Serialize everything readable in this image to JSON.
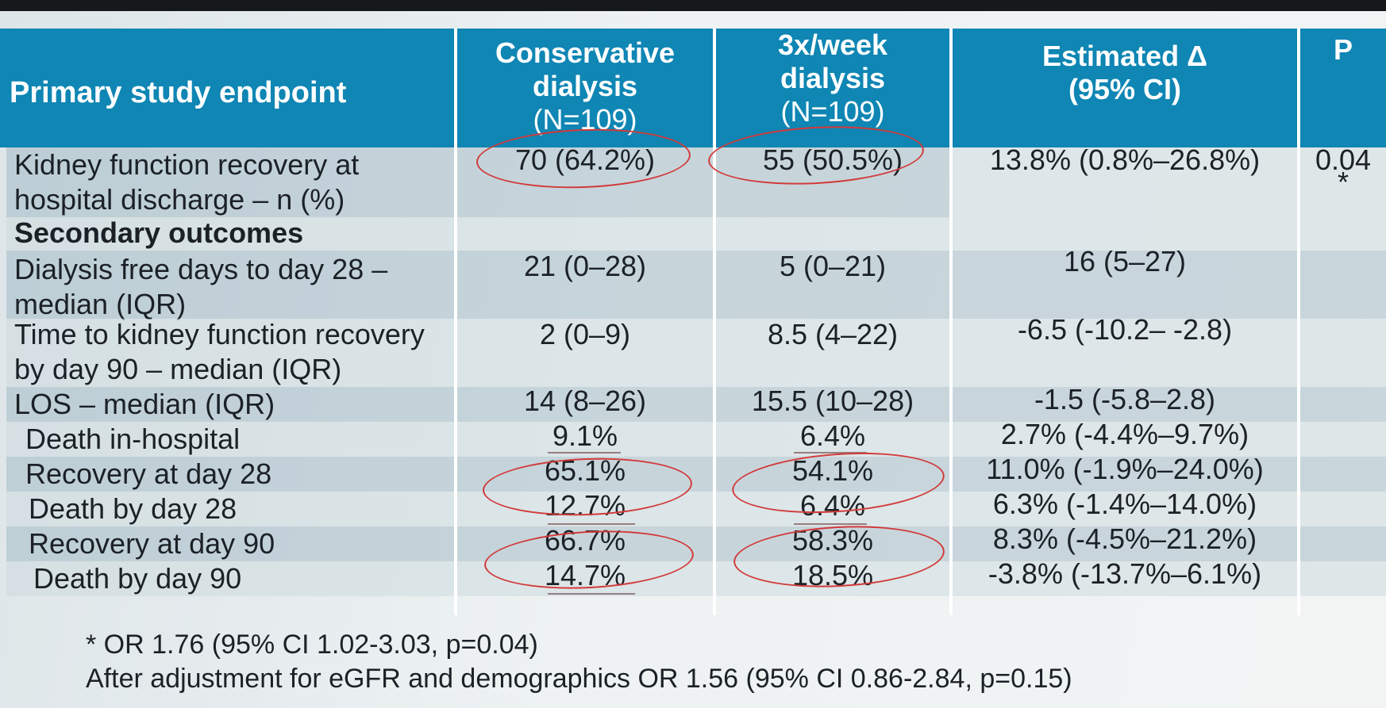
{
  "header": {
    "endpoint": "Primary study endpoint",
    "conservative": [
      "Conservative",
      "dialysis",
      "(N=109)"
    ],
    "threeweekly": [
      "3x/week",
      "dialysis",
      "(N=109)"
    ],
    "estimated": [
      "Estimated Δ",
      "(95% CI)"
    ],
    "p": "P"
  },
  "primary": {
    "label": [
      "Kidney function recovery at",
      "hospital discharge – n (%)"
    ],
    "conservative": "70 (64.2%)",
    "threeweekly": "55 (50.5%)",
    "estimated": "13.8% (0.8%–26.8%)",
    "p": "0.04",
    "p_mark": "*"
  },
  "secondary_heading": "Secondary outcomes",
  "rows": [
    {
      "label": [
        "Dialysis free days to day 28 –",
        "median (IQR)"
      ],
      "conservative": "21 (0–28)",
      "threeweekly": "5 (0–21)",
      "estimated": "16 (5–27)"
    },
    {
      "label": [
        "Time to kidney function recovery",
        "by day 90 – median (IQR)"
      ],
      "conservative": "2 (0–9)",
      "threeweekly": "8.5 (4–22)",
      "estimated": "-6.5 (-10.2– -2.8)"
    },
    {
      "label": [
        "LOS – median (IQR)"
      ],
      "conservative": "14 (8–26)",
      "threeweekly": "15.5 (10–28)",
      "estimated": "-1.5 (-5.8–2.8)"
    },
    {
      "label": [
        "Death in-hospital"
      ],
      "conservative": "9.1%",
      "threeweekly": "6.4%",
      "estimated": "2.7% (-4.4%–9.7%)"
    },
    {
      "label": [
        "Recovery at day 28"
      ],
      "conservative": "65.1%",
      "threeweekly": "54.1%",
      "estimated": "11.0% (-1.9%–24.0%)"
    },
    {
      "label": [
        "Death by day 28"
      ],
      "conservative": "12.7%",
      "threeweekly": "6.4%",
      "estimated": "6.3% (-1.4%–14.0%)"
    },
    {
      "label": [
        "Recovery at day 90"
      ],
      "conservative": "66.7%",
      "threeweekly": "58.3%",
      "estimated": "8.3% (-4.5%–21.2%)"
    },
    {
      "label": [
        "Death by day 90"
      ],
      "conservative": "14.7%",
      "threeweekly": "18.5%",
      "estimated": "-3.8% (-13.7%–6.1%)"
    }
  ],
  "footnotes": [
    "* OR 1.76 (95% CI 1.02-3.03, p=0.04)",
    "After adjustment for eGFR and demographics OR 1.56 (95% CI 0.86-2.84, p=0.15)"
  ],
  "colors": {
    "header_bg": "#0f86b4",
    "annotation_circle": "#d23a3a"
  }
}
